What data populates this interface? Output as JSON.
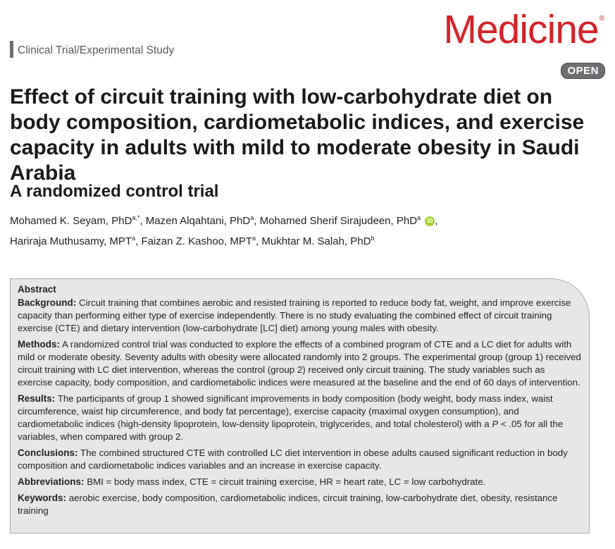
{
  "header": {
    "section": "Clinical Trial/Experimental Study",
    "journal": "Medicine",
    "registered_mark": "®",
    "open_label": "OPEN"
  },
  "article": {
    "title": "Effect of circuit training with low-carbohydrate diet on body composition, cardiometabolic indices, and exercise capacity in adults with mild to moderate obesity in Saudi Arabia",
    "subtitle": "A randomized control trial",
    "authors": [
      {
        "name": "Mohamed K. Seyam, PhD",
        "aff": "a,*",
        "sep": ", "
      },
      {
        "name": "Mazen Alqahtani, PhD",
        "aff": "a",
        "sep": ", "
      },
      {
        "name": "Mohamed Sherif Sirajudeen, PhD",
        "aff": "a",
        "sep": ","
      },
      {
        "name": "Hariraja Muthusamy, MPT",
        "aff": "a",
        "sep": ", "
      },
      {
        "name": "Faizan Z. Kashoo, MPT",
        "aff": "a",
        "sep": ", "
      },
      {
        "name": "Mukhtar M. Salah, PhD",
        "aff": "b",
        "sep": ""
      }
    ],
    "orcid_label": "iD"
  },
  "abstract": {
    "heading": "Abstract",
    "background_label": "Background:",
    "background_text": "Circuit training that combines aerobic and resisted training is reported to reduce body fat, weight, and improve exercise capacity than performing either type of exercise independently. There is no study evaluating the combined effect of circuit training exercise (CTE) and dietary intervention (low-carbohydrate [LC] diet) among young males with obesity.",
    "methods_label": "Methods:",
    "methods_text": "A randomized control trial was conducted to explore the effects of a combined program of CTE and a LC diet for adults with mild or moderate obesity. Seventy adults with obesity were allocated randomly into 2 groups. The experimental group (group 1) received circuit training with LC diet intervention, whereas the control (group 2) received only circuit training. The study variables such as exercise capacity, body composition, and cardiometabolic indices were measured at the baseline and the end of 60 days of intervention.",
    "results_label": "Results:",
    "results_text_1": "The participants of group 1 showed significant improvements in body composition (body weight, body mass index, waist circumference, waist hip circumference, and body fat percentage), exercise capacity (maximal oxygen consumption), and cardiometabolic indices (high-density lipoprotein, low-density lipoprotein, triglycerides, and total cholesterol) with a ",
    "results_p": "P",
    "results_text_2": " < .05 for all the variables, when compared with group 2.",
    "conclusions_label": "Conclusions:",
    "conclusions_text": "The combined structured CTE with controlled LC diet intervention in obese adults caused significant reduction in body composition and cardiometabolic indices variables and an increase in exercise capacity.",
    "abbreviations_label": "Abbreviations:",
    "abbreviations_text": "BMI = body mass index, CTE = circuit training exercise, HR = heart rate, LC = low carbohydrate.",
    "keywords_label": "Keywords:",
    "keywords_text": "aerobic exercise, body composition, cardiometabolic indices, circuit training, low-carbohydrate diet, obesity, resistance training"
  }
}
